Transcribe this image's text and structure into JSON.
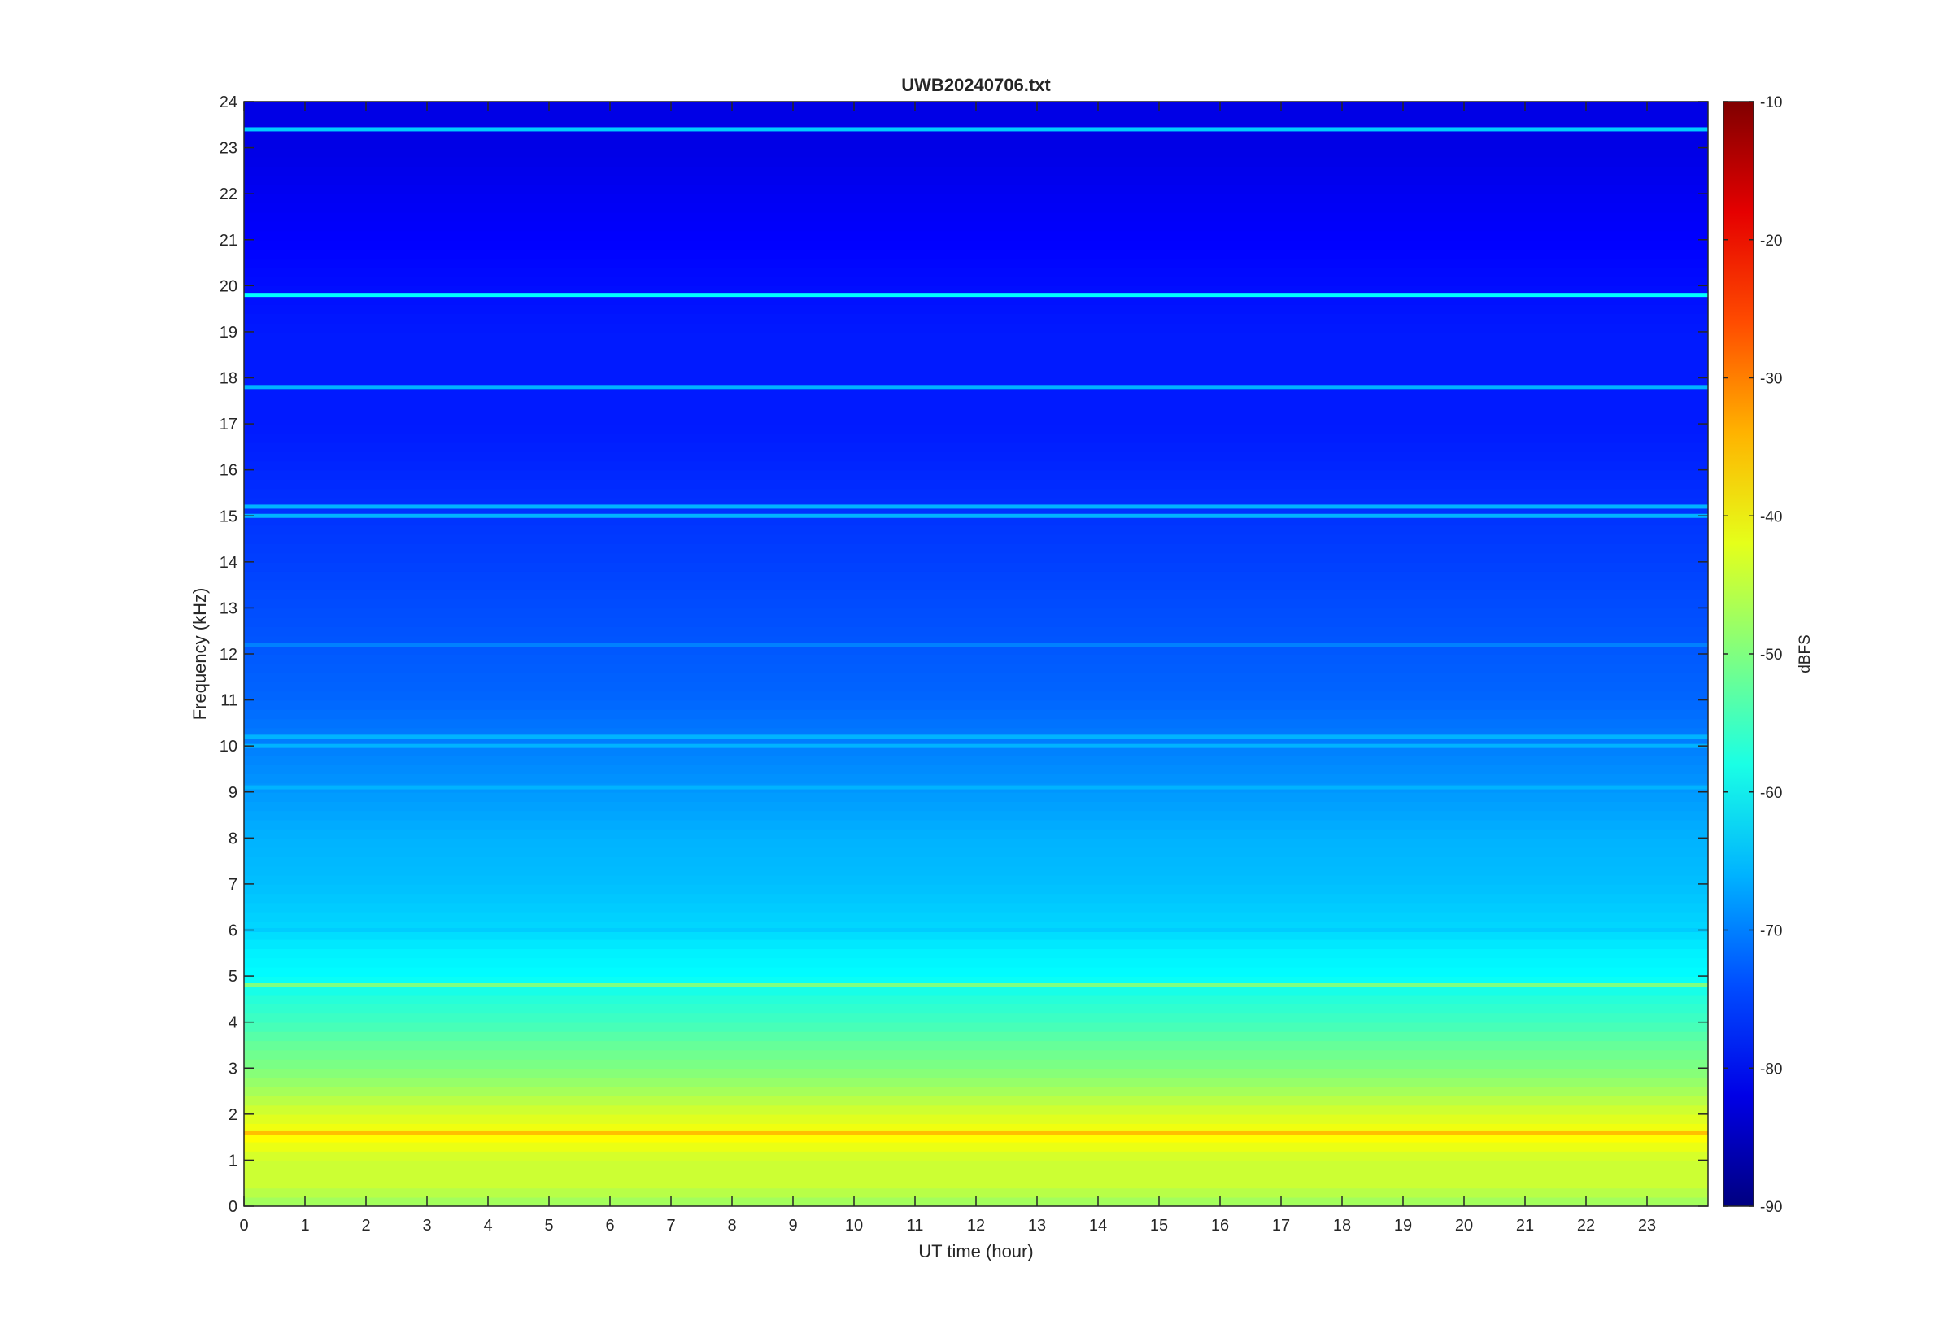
{
  "chart_data": {
    "type": "heatmap",
    "title": "UWB20240706.txt",
    "xlabel": "UT time (hour)",
    "ylabel": "Frequency (kHz)",
    "colorbar_label": "dBFS",
    "colormap": "jet",
    "xlim": [
      0,
      24
    ],
    "ylim": [
      0,
      24
    ],
    "clim": [
      -90,
      -10
    ],
    "x_ticks": [
      "0",
      "1",
      "2",
      "3",
      "4",
      "5",
      "6",
      "7",
      "8",
      "9",
      "10",
      "11",
      "12",
      "13",
      "14",
      "15",
      "16",
      "17",
      "18",
      "19",
      "20",
      "21",
      "22",
      "23"
    ],
    "y_ticks": [
      "0",
      "1",
      "2",
      "3",
      "4",
      "5",
      "6",
      "7",
      "8",
      "9",
      "10",
      "11",
      "12",
      "13",
      "14",
      "15",
      "16",
      "17",
      "18",
      "19",
      "20",
      "21",
      "22",
      "23",
      "24"
    ],
    "colorbar_ticks": [
      "-10",
      "-20",
      "-30",
      "-40",
      "-50",
      "-60",
      "-70",
      "-80",
      "-90"
    ],
    "frequency_profile": {
      "frequency_khz": [
        0,
        0.5,
        1,
        1.5,
        2,
        2.5,
        3,
        3.5,
        4,
        4.5,
        5,
        5.5,
        6,
        7,
        8,
        9,
        10,
        11,
        12,
        13,
        14,
        15,
        16,
        17,
        18,
        19,
        20,
        21,
        22,
        23,
        24
      ],
      "level_dbfs": [
        -48,
        -44,
        -44,
        -40,
        -43,
        -47,
        -50,
        -52,
        -55,
        -57,
        -60,
        -61,
        -63,
        -65,
        -66,
        -68,
        -70,
        -72,
        -73,
        -74,
        -75,
        -76,
        -77,
        -78,
        -78,
        -78,
        -79,
        -80,
        -81,
        -82,
        -82
      ]
    },
    "tones": [
      {
        "frequency_khz": 23.4,
        "level_dbfs": -64
      },
      {
        "frequency_khz": 19.8,
        "level_dbfs": -60
      },
      {
        "frequency_khz": 17.8,
        "level_dbfs": -66
      },
      {
        "frequency_khz": 15.2,
        "level_dbfs": -66
      },
      {
        "frequency_khz": 15.0,
        "level_dbfs": -66
      },
      {
        "frequency_khz": 12.2,
        "level_dbfs": -70
      },
      {
        "frequency_khz": 10.2,
        "level_dbfs": -66
      },
      {
        "frequency_khz": 10.0,
        "level_dbfs": -66
      },
      {
        "frequency_khz": 9.1,
        "level_dbfs": -66
      },
      {
        "frequency_khz": 6.0,
        "level_dbfs": -64
      },
      {
        "frequency_khz": 4.8,
        "level_dbfs": -50
      },
      {
        "frequency_khz": 1.6,
        "level_dbfs": -35
      }
    ],
    "grid": false,
    "colorbar_position": "right"
  }
}
